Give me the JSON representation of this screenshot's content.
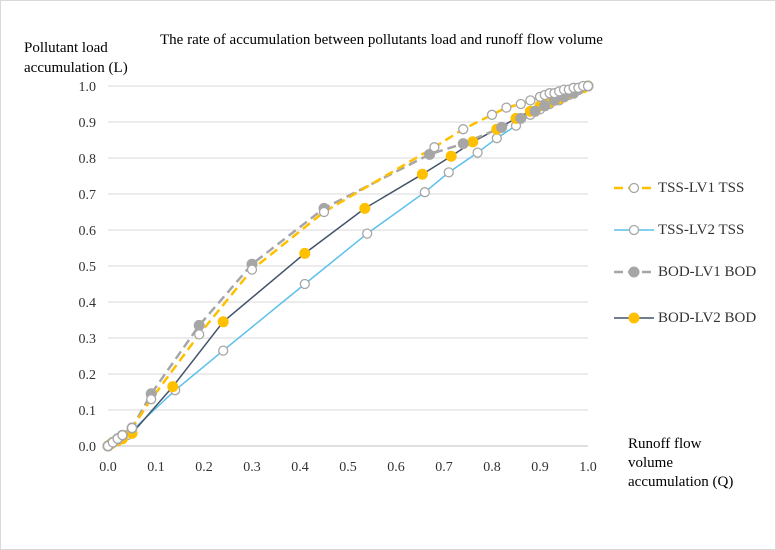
{
  "chart_data": {
    "type": "line",
    "title": "The rate of accumulation between pollutants load and runoff flow volume",
    "ylabel_lines": [
      "Pollutant load",
      "accumulation (L)"
    ],
    "xlabel_lines": [
      "Runoff flow",
      "volume",
      "accumulation (Q)"
    ],
    "xlim": [
      0,
      1
    ],
    "ylim": [
      0,
      1
    ],
    "xticks": [
      "0.0",
      "0.1",
      "0.2",
      "0.3",
      "0.4",
      "0.5",
      "0.6",
      "0.7",
      "0.8",
      "0.9",
      "1.0"
    ],
    "yticks": [
      "0.0",
      "0.1",
      "0.2",
      "0.3",
      "0.4",
      "0.5",
      "0.6",
      "0.7",
      "0.8",
      "0.9",
      "1.0"
    ],
    "grid": "horizontal",
    "legend_position": "right",
    "series": [
      {
        "name": "TSS-LV1 TSS",
        "color": "#ffc000",
        "line_style": "dash",
        "marker": "open-circle",
        "marker_color": "#a6a6a6",
        "x": [
          0,
          0.01,
          0.02,
          0.03,
          0.05,
          0.09,
          0.19,
          0.3,
          0.45,
          0.68,
          0.74,
          0.8,
          0.83,
          0.86,
          0.88,
          0.9,
          0.91,
          0.92,
          0.93,
          0.94,
          0.95,
          0.96,
          0.97,
          0.98,
          0.99,
          1.0
        ],
        "y": [
          0,
          0.01,
          0.02,
          0.03,
          0.05,
          0.13,
          0.31,
          0.49,
          0.65,
          0.83,
          0.88,
          0.92,
          0.94,
          0.95,
          0.96,
          0.97,
          0.975,
          0.98,
          0.98,
          0.985,
          0.99,
          0.99,
          0.995,
          0.995,
          1.0,
          1.0
        ]
      },
      {
        "name": "TSS-LV2 TSS",
        "color": "#5bc0eb",
        "line_style": "solid",
        "marker": "open-circle",
        "marker_color": "#a6a6a6",
        "x": [
          0,
          0.005,
          0.01,
          0.02,
          0.04,
          0.14,
          0.24,
          0.41,
          0.54,
          0.66,
          0.71,
          0.77,
          0.81,
          0.85,
          0.88,
          0.9,
          0.92,
          0.94,
          0.95,
          0.96,
          0.97,
          0.98,
          0.99,
          1.0
        ],
        "y": [
          0,
          0.005,
          0.01,
          0.015,
          0.03,
          0.155,
          0.265,
          0.45,
          0.59,
          0.705,
          0.76,
          0.815,
          0.855,
          0.89,
          0.92,
          0.935,
          0.95,
          0.96,
          0.97,
          0.975,
          0.985,
          0.99,
          0.995,
          1.0
        ]
      },
      {
        "name": "BOD-LV1 BOD",
        "color": "#a6a6a6",
        "line_style": "dash",
        "marker": "filled-circle",
        "marker_color": "#a6a6a6",
        "x": [
          0,
          0.01,
          0.02,
          0.03,
          0.05,
          0.09,
          0.19,
          0.3,
          0.45,
          0.67,
          0.74,
          0.82,
          0.86,
          0.89,
          0.91,
          0.93,
          0.95,
          0.97,
          0.98,
          1.0
        ],
        "y": [
          0,
          0.01,
          0.02,
          0.03,
          0.05,
          0.145,
          0.335,
          0.505,
          0.66,
          0.81,
          0.84,
          0.885,
          0.91,
          0.93,
          0.945,
          0.96,
          0.97,
          0.98,
          0.99,
          1.0
        ]
      },
      {
        "name": "BOD-LV2 BOD",
        "color": "#44546a",
        "line_style": "solid",
        "marker": "filled-circle",
        "marker_color": "#ffc000",
        "x": [
          0,
          0.005,
          0.01,
          0.02,
          0.03,
          0.05,
          0.135,
          0.24,
          0.41,
          0.535,
          0.655,
          0.715,
          0.76,
          0.81,
          0.85,
          0.88,
          0.9,
          0.92,
          0.94,
          0.95,
          0.96,
          0.97,
          0.98,
          0.99,
          1.0
        ],
        "y": [
          0,
          0.005,
          0.01,
          0.015,
          0.02,
          0.035,
          0.165,
          0.345,
          0.535,
          0.66,
          0.755,
          0.805,
          0.845,
          0.88,
          0.91,
          0.93,
          0.945,
          0.955,
          0.965,
          0.97,
          0.98,
          0.985,
          0.99,
          0.995,
          1.0
        ]
      }
    ]
  }
}
